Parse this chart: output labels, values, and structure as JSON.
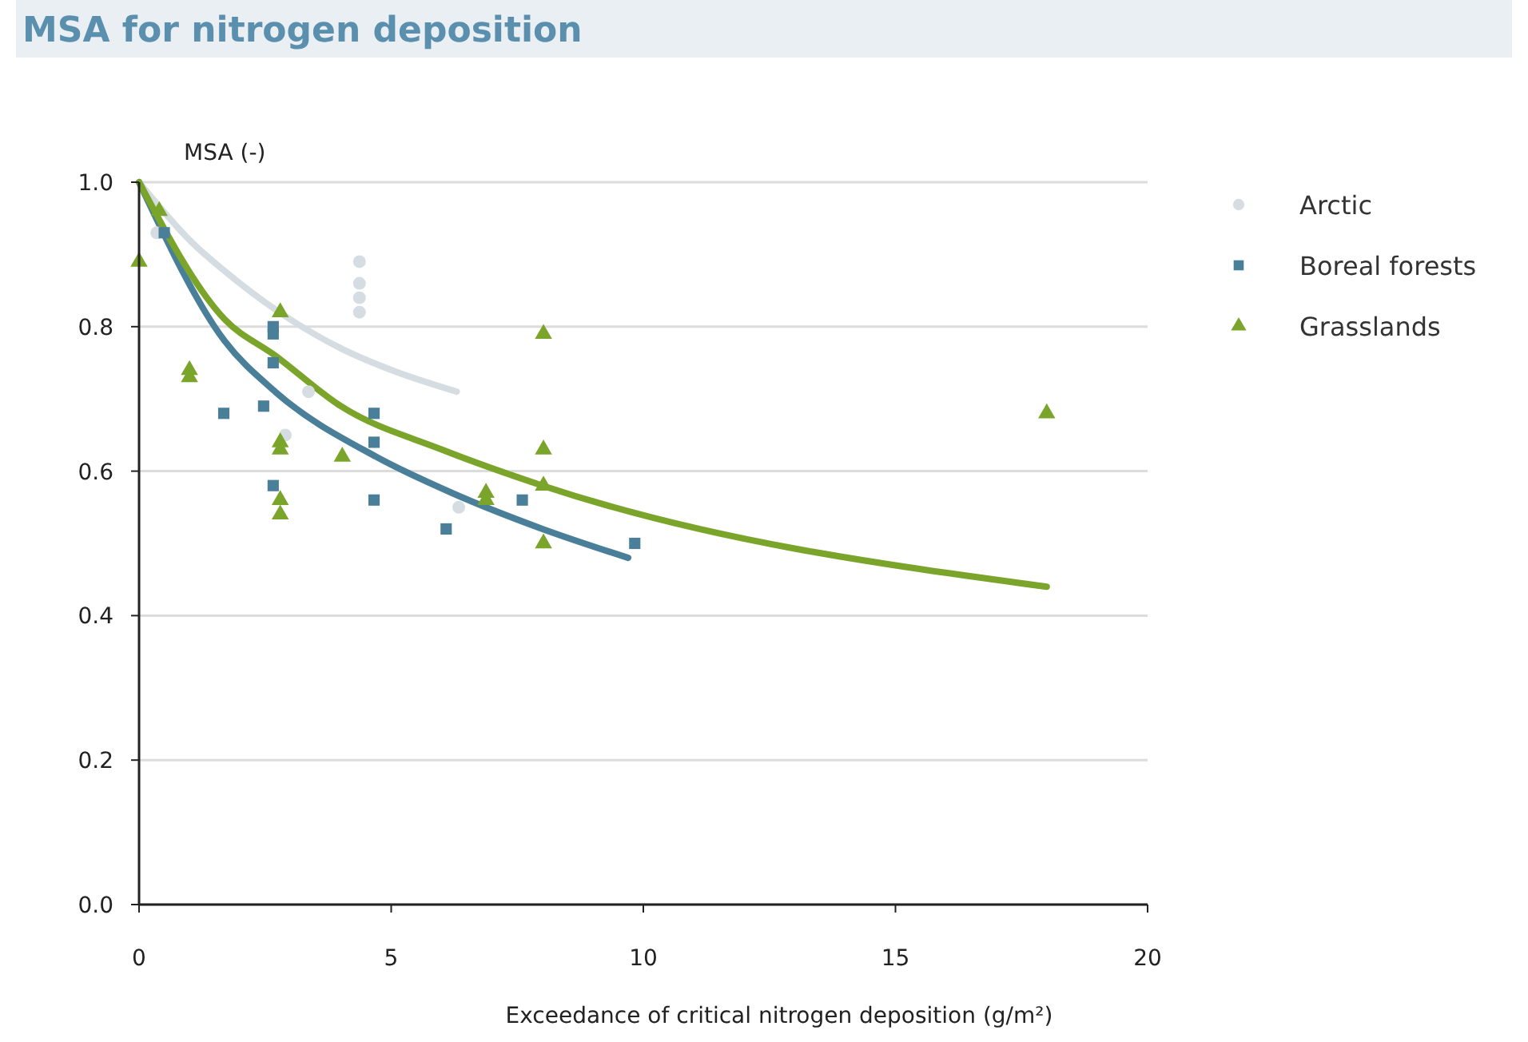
{
  "chart_data": {
    "type": "scatter",
    "title": "MSA for nitrogen deposition",
    "ylabel": "MSA (-)",
    "xlabel": "Exceedance of critical nitrogen deposition (g/m²)",
    "xlim": [
      0,
      20
    ],
    "xticks": [
      0,
      5,
      10,
      15,
      20
    ],
    "ylim": [
      0,
      1
    ],
    "yticks": [
      {
        "value": 0,
        "label": "0.0"
      },
      0.2,
      0.4,
      0.6,
      0.8,
      {
        "value": 1,
        "label": "1.0"
      }
    ],
    "grid": "y",
    "legend": "top right",
    "series": [
      {
        "type": "line",
        "color": "#d5dde2",
        "marker": "none",
        "x": [
          0,
          1,
          2,
          3,
          4,
          5,
          6.3
        ],
        "values": [
          1.0,
          0.92,
          0.86,
          0.81,
          0.77,
          0.74,
          0.71
        ]
      },
      {
        "type": "line",
        "color": "#4a7f9a",
        "marker": "none",
        "x": [
          0,
          1.7,
          2.7,
          4.7,
          6.2,
          8,
          9.7
        ],
        "values": [
          1.0,
          0.78,
          0.71,
          0.62,
          0.57,
          0.52,
          0.48
        ]
      },
      {
        "type": "line",
        "color": "#7aa52a",
        "marker": "none",
        "x": [
          0,
          1.7,
          2.7,
          4,
          6,
          8,
          18
        ],
        "values": [
          1.0,
          0.81,
          0.76,
          0.69,
          0.63,
          0.58,
          0.44
        ]
      },
      {
        "name": "Arctic",
        "color": "#d5dde2",
        "marker": "circle",
        "x": [
          0.35,
          4.37,
          4.37,
          4.37,
          4.37,
          3.36,
          2.9,
          6.34
        ],
        "values": [
          0.93,
          0.89,
          0.86,
          0.84,
          0.82,
          0.71,
          0.65,
          0.55
        ]
      },
      {
        "name": "Boreal forests",
        "color": "#4a7f9a",
        "marker": "square",
        "x": [
          0.5,
          2.66,
          2.66,
          2.66,
          1.68,
          2.47,
          2.66,
          4.66,
          4.66,
          4.66,
          6.09,
          7.6,
          9.83
        ],
        "values": [
          0.93,
          0.8,
          0.79,
          0.75,
          0.68,
          0.69,
          0.58,
          0.56,
          0.68,
          0.64,
          0.52,
          0.56,
          0.5
        ]
      },
      {
        "name": "Grasslands",
        "color": "#7aa52a",
        "marker": "triangle",
        "x": [
          0,
          0.4,
          1,
          1,
          2.8,
          2.8,
          2.8,
          2.8,
          2.8,
          4.03,
          8.02,
          8.02,
          8.02,
          8.02,
          6.88,
          6.88,
          18
        ],
        "values": [
          0.89,
          0.96,
          0.74,
          0.73,
          0.82,
          0.64,
          0.63,
          0.56,
          0.54,
          0.62,
          0.79,
          0.63,
          0.58,
          0.5,
          0.57,
          0.56,
          0.68
        ]
      }
    ]
  }
}
